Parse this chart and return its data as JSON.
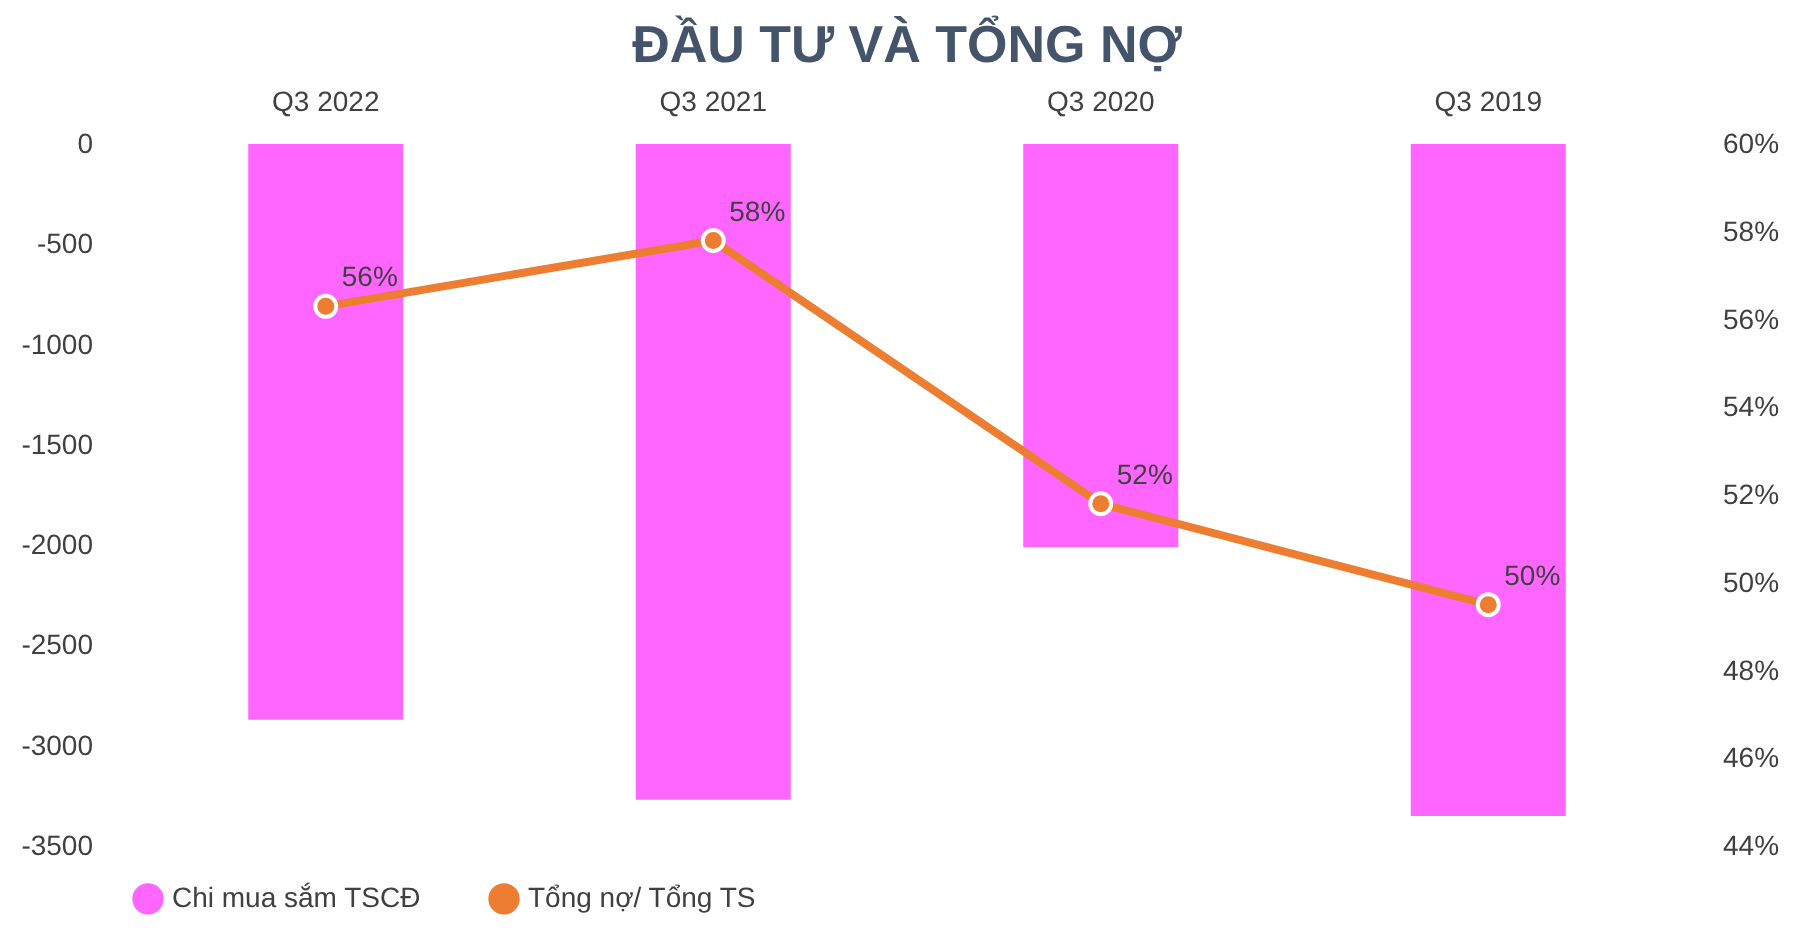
{
  "chart_data": {
    "type": "bar",
    "title": "ĐẦU TƯ VÀ TỔNG NỢ",
    "categories": [
      "Q3 2022",
      "Q3 2021",
      "Q3 2020",
      "Q3 2019"
    ],
    "series": [
      {
        "name": "Chi mua sắm TSCĐ",
        "color": "#ff66ff",
        "values": [
          -2870,
          -3270,
          -2010,
          -3350
        ]
      },
      {
        "name": "Tổng nợ/ Tổng TS",
        "type": "line",
        "axis": "y2",
        "color": "#ed7d31",
        "values": [
          56.3,
          57.8,
          51.8,
          49.5
        ],
        "value_labels": [
          "56%",
          "58%",
          "52%",
          "50%"
        ]
      }
    ],
    "ylim": [
      -3500,
      0
    ],
    "yticks": [
      0,
      -500,
      -1000,
      -1500,
      -2000,
      -2500,
      -3000,
      -3500
    ],
    "y2lim": [
      44,
      60
    ],
    "y2ticks": [
      {
        "value": 44,
        "label": "44%"
      },
      {
        "value": 46,
        "label": "46%"
      },
      {
        "value": 48,
        "label": "48%"
      },
      {
        "value": 50,
        "label": "50%"
      },
      {
        "value": 52,
        "label": "52%"
      },
      {
        "value": 54,
        "label": "54%"
      },
      {
        "value": 56,
        "label": "56%"
      },
      {
        "value": 58,
        "label": "58%"
      },
      {
        "value": 60,
        "label": "60%"
      }
    ],
    "legend": "bottom",
    "marker": "circle",
    "line_style": "solid"
  }
}
